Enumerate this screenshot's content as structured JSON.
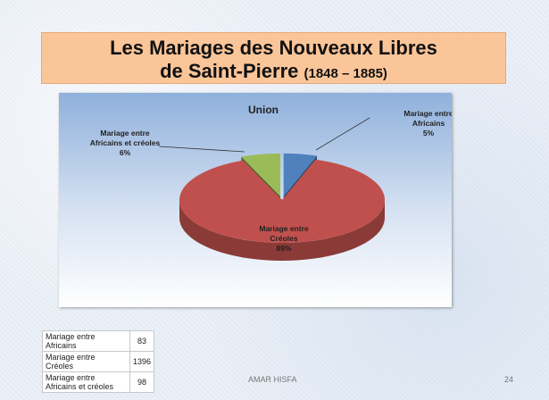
{
  "slide": {
    "title_line1": "Les Mariages des Nouveaux Libres",
    "title_line2": "de Saint-Pierre",
    "title_years": "(1848 – 1885)",
    "footer_author": "AMAR HISFA",
    "page_number": "24"
  },
  "chart_data": {
    "type": "pie",
    "title": "Union",
    "style": "3d-exploded",
    "slices": [
      {
        "label_line1": "Mariage entre",
        "label_line2": "Africains",
        "percent_label": "5%",
        "value": 83,
        "color": "#4f81bd"
      },
      {
        "label_line1": "Mariage entre",
        "label_line2": "Créoles",
        "percent_label": "89%",
        "value": 1396,
        "color": "#c0504d"
      },
      {
        "label_line1": "Mariage entre",
        "label_line2": "Africains et créoles",
        "percent_label": "6%",
        "value": 98,
        "color": "#9bbb59"
      }
    ]
  },
  "table": {
    "rows": [
      {
        "label_line1": "Mariage entre",
        "label_line2": "Africains",
        "value": "83"
      },
      {
        "label_line1": "Mariage entre",
        "label_line2": "Créoles",
        "value": "1396"
      },
      {
        "label_line1": "Mariage entre",
        "label_line2": "Africains et créoles",
        "value": "98"
      }
    ]
  }
}
